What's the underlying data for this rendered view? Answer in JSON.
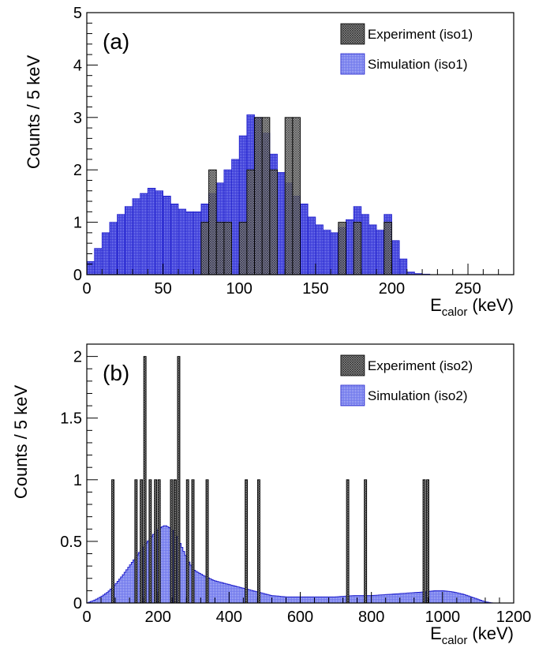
{
  "chart_data": [
    {
      "type": "bar",
      "panel_label": "(a)",
      "ylabel": "Counts / 5 keV",
      "xlabel_main": "E",
      "xlabel_sub": "calor",
      "xlabel_unit": " (keV)",
      "xlim": [
        0,
        280
      ],
      "ylim": [
        0,
        5
      ],
      "bin_width": 5,
      "xticks": [
        0,
        50,
        100,
        150,
        200,
        250
      ],
      "yticks": [
        0,
        1,
        2,
        3,
        4,
        5
      ],
      "legend": {
        "position": "top-right",
        "entries": [
          "Experiment (iso1)",
          "Simulation (iso1)"
        ]
      },
      "colors": {
        "experiment": "#555555",
        "simulation": "#2222cc",
        "simulation_fill": "#7f86f0"
      },
      "series": [
        {
          "name": "Experiment (iso1)",
          "x_start": [
            75,
            80,
            85,
            90,
            100,
            105,
            110,
            115,
            120,
            130,
            135,
            165,
            175,
            195
          ],
          "values": [
            1,
            2,
            1,
            1,
            1,
            2,
            3,
            3,
            2,
            3,
            3,
            1,
            1,
            1
          ]
        },
        {
          "name": "Simulation (iso1)",
          "x_start": [
            0,
            5,
            10,
            15,
            20,
            25,
            30,
            35,
            40,
            45,
            50,
            55,
            60,
            65,
            70,
            75,
            80,
            85,
            90,
            95,
            100,
            105,
            110,
            115,
            120,
            125,
            130,
            135,
            140,
            145,
            150,
            155,
            160,
            165,
            170,
            175,
            180,
            185,
            190,
            195,
            200,
            205,
            210,
            215,
            220,
            225,
            230,
            235,
            240,
            245,
            250,
            255,
            260,
            265,
            270,
            275
          ],
          "values": [
            0.25,
            0.5,
            0.8,
            1.0,
            1.15,
            1.3,
            1.45,
            1.55,
            1.65,
            1.6,
            1.5,
            1.35,
            1.25,
            1.2,
            1.2,
            1.35,
            1.55,
            1.75,
            2.0,
            2.2,
            2.65,
            3.05,
            3.0,
            2.7,
            2.3,
            1.95,
            1.75,
            1.5,
            1.35,
            1.1,
            0.95,
            0.85,
            0.8,
            0.9,
            1.05,
            1.3,
            1.15,
            0.95,
            0.85,
            1.15,
            0.65,
            0.3,
            0.05,
            0.02,
            0.01,
            0,
            0,
            0,
            0,
            0,
            0,
            0,
            0,
            0,
            0,
            0
          ]
        }
      ]
    },
    {
      "type": "bar",
      "panel_label": "(b)",
      "ylabel": "Counts / 5 keV",
      "xlabel_main": "E",
      "xlabel_sub": "calor",
      "xlabel_unit": " (keV)",
      "xlim": [
        0,
        1200
      ],
      "ylim": [
        0,
        2.1
      ],
      "bin_width": 5,
      "xticks": [
        0,
        200,
        400,
        600,
        800,
        1000,
        1200
      ],
      "yticks": [
        0,
        0.5,
        1,
        1.5,
        2
      ],
      "ytick_labels": [
        "0",
        "0.5",
        "1",
        "1.5",
        "2"
      ],
      "legend": {
        "position": "top-right",
        "entries": [
          "Experiment (iso2)",
          "Simulation (iso2)"
        ]
      },
      "colors": {
        "experiment": "#555555",
        "simulation": "#2222cc",
        "simulation_fill": "#8a90f2"
      },
      "series": [
        {
          "name": "Experiment (iso2)",
          "x_start": [
            70,
            135,
            150,
            160,
            175,
            190,
            200,
            235,
            245,
            255,
            280,
            295,
            335,
            445,
            480,
            730,
            780,
            945,
            955
          ],
          "values": [
            1,
            1,
            1,
            2,
            1,
            1,
            1,
            1,
            1,
            2,
            1,
            1,
            1,
            1,
            1,
            1,
            1,
            1,
            1
          ]
        },
        {
          "name": "Simulation (iso2)",
          "x": [
            0,
            20,
            40,
            60,
            80,
            100,
            120,
            140,
            160,
            180,
            200,
            220,
            240,
            260,
            280,
            300,
            330,
            360,
            400,
            440,
            480,
            520,
            560,
            600,
            650,
            700,
            750,
            800,
            850,
            900,
            950,
            980,
            1000,
            1030,
            1060,
            1080,
            1100,
            1120,
            1140,
            1200
          ],
          "values": [
            0.0,
            0.02,
            0.05,
            0.09,
            0.15,
            0.22,
            0.3,
            0.38,
            0.46,
            0.53,
            0.6,
            0.63,
            0.6,
            0.5,
            0.37,
            0.27,
            0.22,
            0.18,
            0.15,
            0.12,
            0.09,
            0.06,
            0.05,
            0.05,
            0.05,
            0.05,
            0.06,
            0.06,
            0.07,
            0.08,
            0.09,
            0.1,
            0.1,
            0.09,
            0.07,
            0.05,
            0.03,
            0.01,
            0.0,
            0.0
          ]
        }
      ]
    }
  ]
}
